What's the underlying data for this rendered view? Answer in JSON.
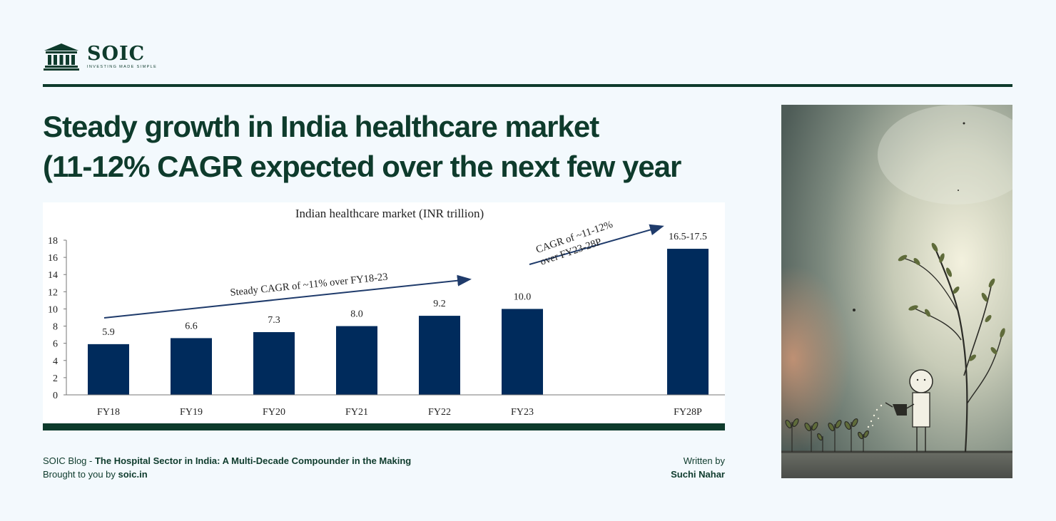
{
  "brand": {
    "name": "SOIC",
    "tagline": "INVESTING MADE SIMPLE",
    "icon": "bank-building-icon",
    "color": "#0e3b2c"
  },
  "title": {
    "line1": "Steady growth in India healthcare market",
    "line2": "(11-12% CAGR expected over the next few year"
  },
  "chart_data": {
    "type": "bar",
    "title": "Indian healthcare market (INR trillion)",
    "categories": [
      "FY18",
      "FY19",
      "FY20",
      "FY21",
      "FY22",
      "FY23",
      "FY28P"
    ],
    "values": [
      5.9,
      6.6,
      7.3,
      8.0,
      9.2,
      10.0,
      17.0
    ],
    "data_labels": [
      "5.9",
      "6.6",
      "7.3",
      "8.0",
      "9.2",
      "10.0",
      "16.5-17.5"
    ],
    "ylim": [
      0,
      18
    ],
    "yticks": [
      "0",
      "2",
      "4",
      "6",
      "8",
      "10",
      "12",
      "14",
      "16",
      "18"
    ],
    "bar_color": "#002b5c",
    "grid": false,
    "annotations": [
      {
        "text": "Steady CAGR of ~11% over FY18-23"
      },
      {
        "text": "CAGR of ~11-12%"
      },
      {
        "text": "over FY23-28P"
      }
    ]
  },
  "footer": {
    "blog_prefix": "SOIC Blog - ",
    "blog_title": "The Hospital Sector in India: A Multi-Decade Compounder in the Making",
    "brought_prefix": "Brought to you by ",
    "brought_site": "soic.in",
    "written_by": "Written by",
    "author": "Suchi Nahar"
  },
  "photo": {
    "subject": "stick-figure-watering-plants-illustration"
  }
}
